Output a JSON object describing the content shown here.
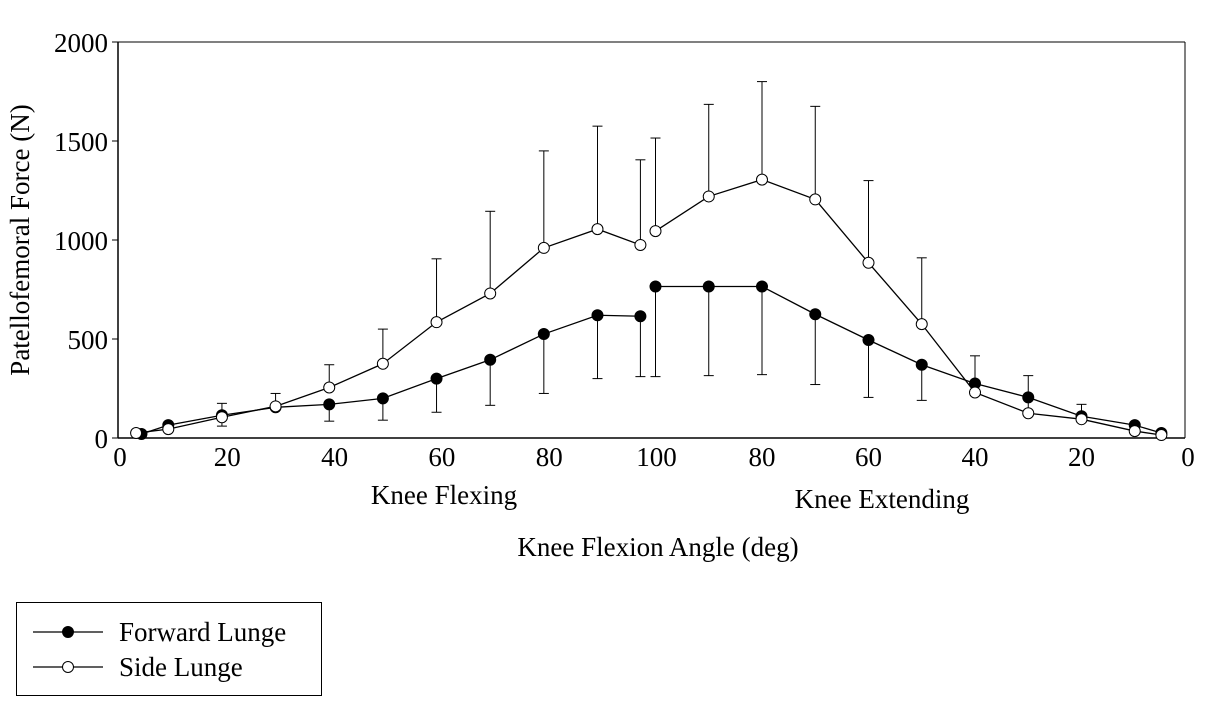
{
  "chart_data": {
    "type": "line",
    "title": "",
    "ylabel": "Patellofemoral Force (N)",
    "xlabel": "Knee Flexion Angle (deg)",
    "phase_labels": [
      "Knee Flexing",
      "Knee Extending"
    ],
    "ylim": [
      0,
      2000
    ],
    "y_ticks": [
      "0",
      "500",
      "1000",
      "1500",
      "2000"
    ],
    "x_tick_labels": [
      "0",
      "20",
      "40",
      "60",
      "80",
      "100",
      "80",
      "60",
      "40",
      "20",
      "0"
    ],
    "grid": false,
    "legend_position": "bottom-left",
    "series": [
      {
        "name": "Forward Lunge",
        "marker": "filled-circle",
        "color": "#000000",
        "flexing": {
          "x": [
            4,
            9,
            19,
            29,
            39,
            49,
            59,
            69,
            79,
            89,
            97
          ],
          "y": [
            20,
            65,
            115,
            155,
            170,
            200,
            300,
            395,
            525,
            620,
            615
          ],
          "err": [
            0,
            30,
            55,
            0,
            85,
            110,
            170,
            230,
            300,
            320,
            305
          ]
        },
        "extending": {
          "x": [
            100,
            90,
            80,
            70,
            60,
            50,
            40,
            30,
            20,
            10,
            5
          ],
          "y": [
            765,
            765,
            765,
            625,
            495,
            370,
            275,
            205,
            110,
            65,
            25
          ],
          "err": [
            455,
            450,
            445,
            355,
            290,
            180,
            0,
            0,
            0,
            0,
            0
          ]
        }
      },
      {
        "name": "Side Lunge",
        "marker": "open-circle",
        "color": "#000000",
        "flexing": {
          "x": [
            3,
            9,
            19,
            29,
            39,
            49,
            59,
            69,
            79,
            89,
            97
          ],
          "y": [
            25,
            45,
            105,
            160,
            255,
            375,
            585,
            730,
            960,
            1055,
            975
          ],
          "err": [
            0,
            0,
            70,
            65,
            115,
            175,
            320,
            415,
            490,
            520,
            430
          ]
        },
        "extending": {
          "x": [
            100,
            90,
            80,
            70,
            60,
            50,
            40,
            30,
            20,
            10,
            5
          ],
          "y": [
            1045,
            1220,
            1305,
            1205,
            885,
            575,
            230,
            125,
            95,
            35,
            15
          ],
          "err": [
            470,
            465,
            495,
            470,
            415,
            335,
            185,
            190,
            75,
            0,
            0
          ]
        }
      }
    ]
  }
}
